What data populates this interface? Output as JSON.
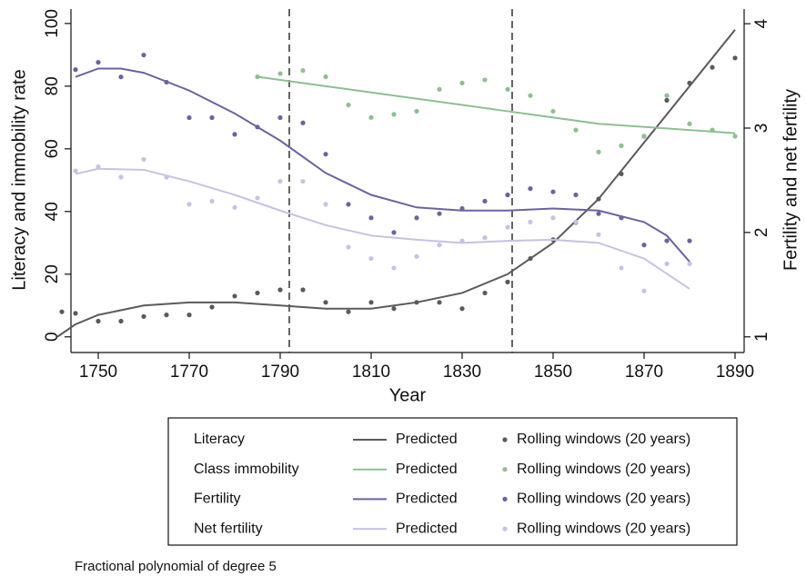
{
  "chart_data": {
    "type": "line",
    "xlabel": "Year",
    "ylabel": "Literacy and immobility rate",
    "y2label": "Fertility and net fertility",
    "note": "Fractional polynomial of degree 5",
    "xlim": [
      1744,
      1892
    ],
    "xticks": [
      1750,
      1770,
      1790,
      1810,
      1830,
      1850,
      1870,
      1890
    ],
    "ylim": [
      -5,
      104.6
    ],
    "yticks": [
      0,
      20,
      40,
      60,
      80,
      100
    ],
    "y2lim": [
      0.85,
      4.14
    ],
    "y2ticks": [
      1,
      2,
      3,
      4
    ],
    "vlines": [
      1792,
      1841
    ],
    "groups": [
      {
        "name": "Literacy",
        "color": "#5a5a5a",
        "axis": "y",
        "predicted": {
          "name": "Predicted",
          "x": [
            1741,
            1745,
            1750,
            1760,
            1770,
            1780,
            1790,
            1800,
            1810,
            1820,
            1830,
            1840,
            1850,
            1860,
            1870,
            1880,
            1890
          ],
          "values": [
            0,
            4,
            7,
            10,
            11,
            11,
            10,
            9,
            9,
            11,
            14,
            20,
            30,
            44,
            62,
            80,
            98
          ]
        },
        "rolling": {
          "name": "Rolling windows (20 years)",
          "x": [
            1742,
            1745,
            1750,
            1755,
            1760,
            1765,
            1770,
            1775,
            1780,
            1785,
            1790,
            1795,
            1800,
            1805,
            1810,
            1815,
            1820,
            1825,
            1830,
            1835,
            1840,
            1845,
            1850,
            1855,
            1860,
            1865,
            1870,
            1875,
            1880,
            1885,
            1890
          ],
          "values": [
            8,
            7.5,
            5,
            5,
            6.5,
            7,
            7,
            9.5,
            13,
            14,
            15,
            15,
            11,
            8,
            11,
            9,
            11,
            11,
            9,
            14,
            17.5,
            25,
            31,
            36.5,
            44,
            52,
            64,
            75.5,
            81,
            86,
            89
          ]
        }
      },
      {
        "name": "Class immobility",
        "color": "#8dc08f",
        "axis": "y",
        "predicted": {
          "name": "Predicted",
          "x": [
            1785,
            1800,
            1820,
            1840,
            1860,
            1880,
            1890
          ],
          "values": [
            83,
            80,
            76,
            72,
            68,
            66,
            65
          ]
        },
        "rolling": {
          "name": "Rolling windows (20 years)",
          "x": [
            1785,
            1790,
            1795,
            1800,
            1805,
            1810,
            1815,
            1820,
            1825,
            1830,
            1835,
            1840,
            1845,
            1850,
            1855,
            1860,
            1865,
            1870,
            1875,
            1880,
            1885,
            1890
          ],
          "values": [
            83,
            84,
            85,
            83,
            74,
            70,
            71,
            72,
            79,
            81,
            82,
            79,
            77,
            72,
            66,
            59,
            61,
            64,
            77,
            68,
            66,
            64
          ]
        }
      },
      {
        "name": "Fertility",
        "color": "#6b63a3",
        "axis": "y2",
        "predicted": {
          "name": "Predicted",
          "x": [
            1745,
            1750,
            1755,
            1760,
            1770,
            1780,
            1790,
            1800,
            1810,
            1820,
            1830,
            1840,
            1850,
            1860,
            1870,
            1875,
            1880
          ],
          "values": [
            3.49,
            3.57,
            3.57,
            3.53,
            3.36,
            3.14,
            2.88,
            2.57,
            2.36,
            2.24,
            2.21,
            2.21,
            2.23,
            2.21,
            2.1,
            1.97,
            1.72
          ]
        },
        "rolling": {
          "name": "Rolling windows (20 years)",
          "x": [
            1745,
            1750,
            1755,
            1760,
            1765,
            1770,
            1775,
            1780,
            1785,
            1790,
            1795,
            1800,
            1805,
            1810,
            1815,
            1820,
            1825,
            1830,
            1835,
            1840,
            1845,
            1850,
            1855,
            1860,
            1865,
            1870,
            1875,
            1880
          ],
          "values": [
            3.56,
            3.63,
            3.49,
            3.7,
            3.44,
            3.1,
            3.1,
            2.94,
            3.01,
            3.1,
            3.05,
            2.75,
            2.27,
            2.14,
            2.0,
            2.14,
            2.18,
            2.23,
            2.3,
            2.36,
            2.42,
            2.39,
            2.36,
            2.18,
            2.14,
            1.88,
            1.92,
            1.92
          ]
        }
      },
      {
        "name": "Net fertility",
        "color": "#c5c2e4",
        "axis": "y2",
        "predicted": {
          "name": "Predicted",
          "x": [
            1745,
            1750,
            1760,
            1770,
            1780,
            1790,
            1800,
            1810,
            1820,
            1830,
            1840,
            1850,
            1860,
            1870,
            1880
          ],
          "values": [
            2.56,
            2.61,
            2.6,
            2.49,
            2.36,
            2.21,
            2.07,
            1.97,
            1.93,
            1.9,
            1.92,
            1.93,
            1.9,
            1.75,
            1.46
          ]
        },
        "rolling": {
          "name": "Rolling windows (20 years)",
          "x": [
            1745,
            1750,
            1755,
            1760,
            1765,
            1770,
            1775,
            1780,
            1785,
            1790,
            1795,
            1800,
            1805,
            1810,
            1815,
            1820,
            1825,
            1830,
            1835,
            1840,
            1845,
            1850,
            1855,
            1860,
            1865,
            1870,
            1875,
            1880
          ],
          "values": [
            2.59,
            2.63,
            2.53,
            2.7,
            2.53,
            2.27,
            2.3,
            2.24,
            2.33,
            2.49,
            2.49,
            2.27,
            1.86,
            1.75,
            1.66,
            1.77,
            1.88,
            1.92,
            1.95,
            2.05,
            2.1,
            2.14,
            2.1,
            1.98,
            1.66,
            1.44,
            1.7,
            1.7
          ]
        }
      }
    ]
  }
}
